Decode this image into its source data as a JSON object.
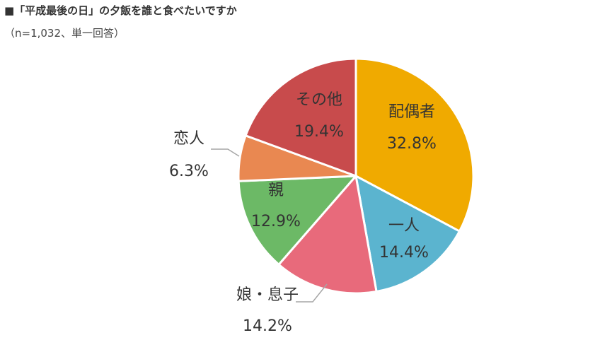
{
  "header": {
    "title": "■「平成最後の日」の夕飯を誰と食べたいですか",
    "subtitle": "（n=1,032、単一回答）"
  },
  "chart_data": {
    "type": "pie",
    "unit": "%",
    "start_angle_deg": 0,
    "direction": "clockwise",
    "slices": [
      {
        "name": "配偶者",
        "value": 32.8,
        "label": "32.8%",
        "color": "#F0AA00"
      },
      {
        "name": "一人",
        "value": 14.4,
        "label": "14.4%",
        "color": "#5BB4CF"
      },
      {
        "name": "娘・息子",
        "value": 14.2,
        "label": "14.2%",
        "color": "#E86A7B"
      },
      {
        "name": "親",
        "value": 12.9,
        "label": "12.9%",
        "color": "#6CB966"
      },
      {
        "name": "恋人",
        "value": 6.3,
        "label": "6.3%",
        "color": "#E98851"
      },
      {
        "name": "その他",
        "value": 19.4,
        "label": "19.4%",
        "color": "#C84B4C"
      }
    ]
  }
}
